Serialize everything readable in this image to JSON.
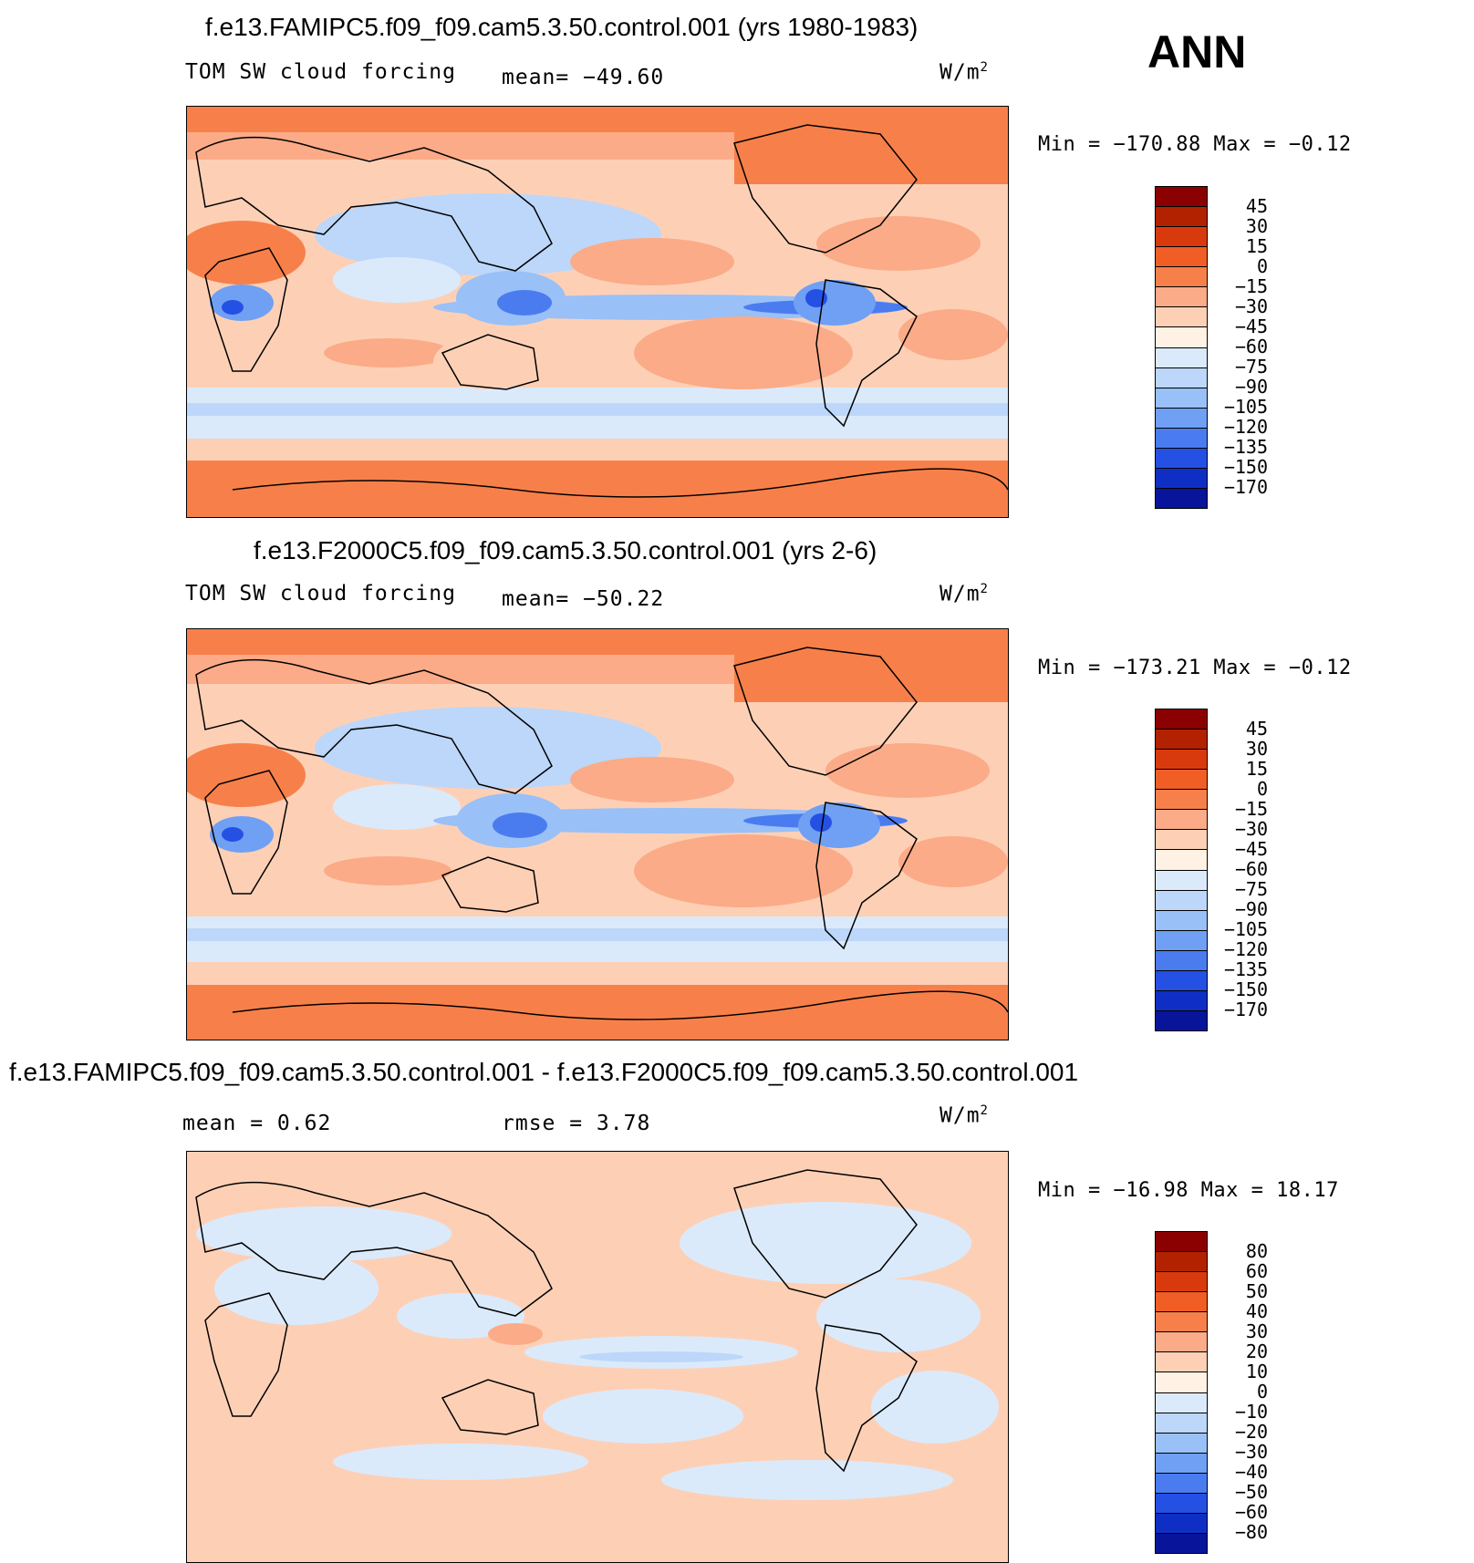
{
  "season": "ANN",
  "panels": [
    {
      "title": "f.e13.FAMIPC5.f09_f09.cam5.3.50.control.001 (yrs 1980-1983)",
      "variable": "TOM SW cloud forcing",
      "mean": "mean= −49.60",
      "units": "W/m",
      "units_exp": "2",
      "minmax": "Min = −170.88 Max =  −0.12",
      "levels": [
        "45",
        "30",
        "15",
        "0",
        "−15",
        "−30",
        "−45",
        "−60",
        "−75",
        "−90",
        "−105",
        "−120",
        "−135",
        "−150",
        "−170"
      ],
      "colors": [
        "#8b0000",
        "#b22200",
        "#d93a0d",
        "#f05e26",
        "#f7804a",
        "#fbab87",
        "#fdd0b6",
        "#fff1e3",
        "#dbeafb",
        "#bcd7f9",
        "#99c0f7",
        "#6fa0f3",
        "#4a7cf0",
        "#2550e4",
        "#0f2fc4",
        "#08149a"
      ]
    },
    {
      "title": "f.e13.F2000C5.f09_f09.cam5.3.50.control.001 (yrs 2-6)",
      "variable": "TOM SW cloud forcing",
      "mean": "mean= −50.22",
      "units": "W/m",
      "units_exp": "2",
      "minmax": "Min = −173.21 Max =  −0.12",
      "levels": [
        "45",
        "30",
        "15",
        "0",
        "−15",
        "−30",
        "−45",
        "−60",
        "−75",
        "−90",
        "−105",
        "−120",
        "−135",
        "−150",
        "−170"
      ],
      "colors": [
        "#8b0000",
        "#b22200",
        "#d93a0d",
        "#f05e26",
        "#f7804a",
        "#fbab87",
        "#fdd0b6",
        "#fff1e3",
        "#dbeafb",
        "#bcd7f9",
        "#99c0f7",
        "#6fa0f3",
        "#4a7cf0",
        "#2550e4",
        "#0f2fc4",
        "#08149a"
      ]
    },
    {
      "title": "f.e13.FAMIPC5.f09_f09.cam5.3.50.control.001 - f.e13.F2000C5.f09_f09.cam5.3.50.control.001",
      "mean": "mean =    0.62",
      "rmse": "rmse =    3.78",
      "units": "W/m",
      "units_exp": "2",
      "minmax": "Min = −16.98 Max =   18.17",
      "levels": [
        "80",
        "60",
        "50",
        "40",
        "30",
        "20",
        "10",
        "0",
        "−10",
        "−20",
        "−30",
        "−40",
        "−50",
        "−60",
        "−80"
      ],
      "colors": [
        "#8b0000",
        "#b22200",
        "#d93a0d",
        "#f05e26",
        "#f7804a",
        "#fbab87",
        "#fdd0b6",
        "#fff1e3",
        "#dbeafb",
        "#bcd7f9",
        "#99c0f7",
        "#6fa0f3",
        "#4a7cf0",
        "#2550e4",
        "#0f2fc4",
        "#08149a"
      ]
    }
  ]
}
